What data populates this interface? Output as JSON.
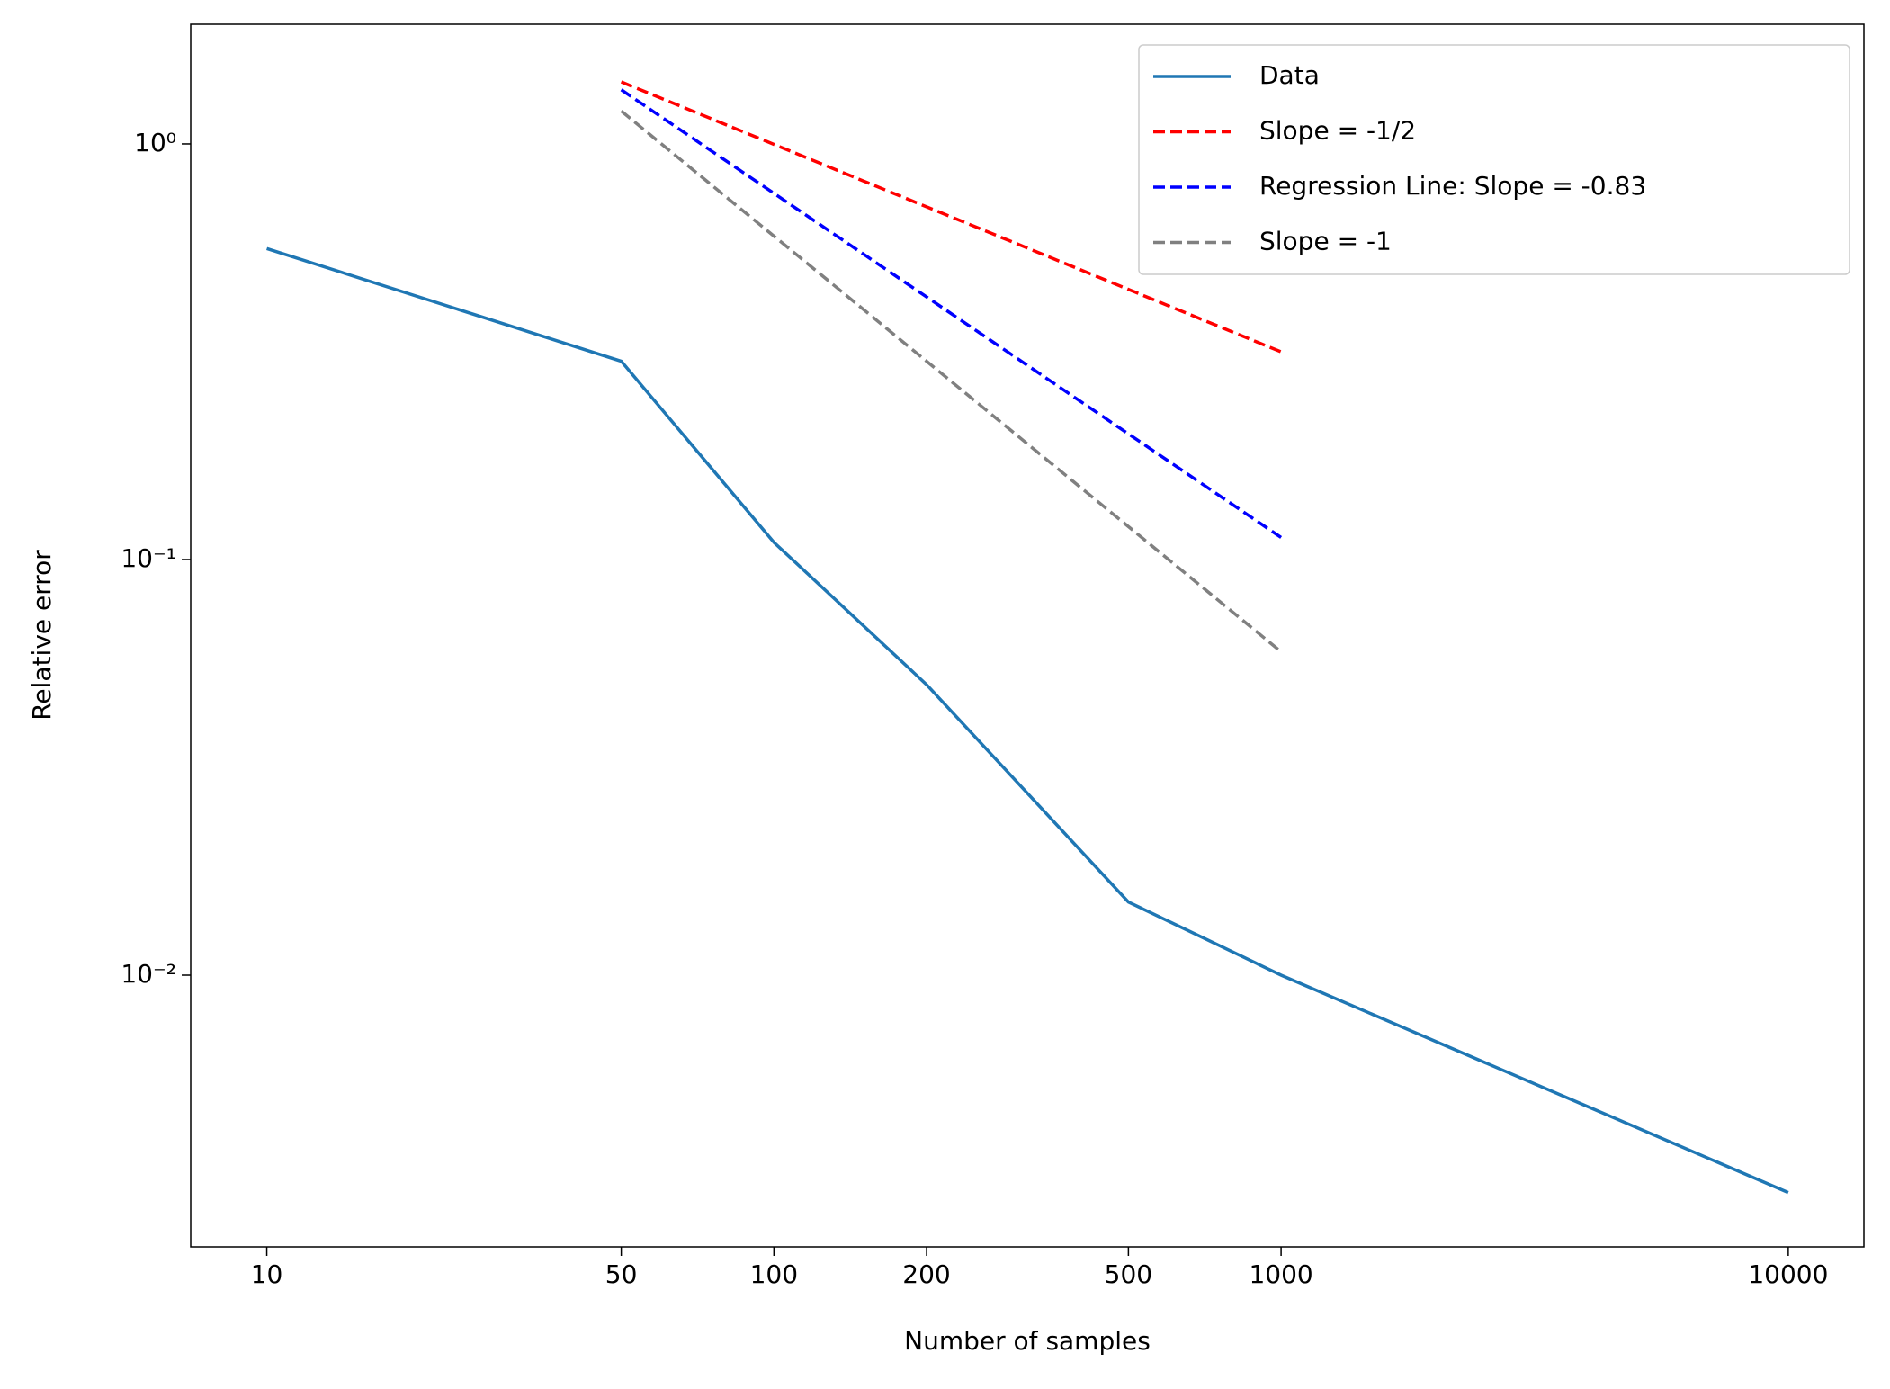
{
  "chart_data": {
    "type": "line",
    "xlabel": "Number of samples",
    "ylabel": "Relative error",
    "xscale": "log",
    "yscale": "log",
    "xlim": [
      7.08,
      14100
    ],
    "ylim": [
      0.00222,
      1.94
    ],
    "xticks": [
      10,
      50,
      100,
      200,
      500,
      1000,
      10000
    ],
    "yticks": [
      {
        "value": 1,
        "label": "10⁰"
      },
      {
        "value": 0.1,
        "label": "10⁻¹"
      },
      {
        "value": 0.01,
        "label": "10⁻²"
      }
    ],
    "legend": "upper right",
    "series": [
      {
        "name": "Data",
        "color": "#1f77b4",
        "style": "solid",
        "x": [
          10,
          50,
          100,
          200,
          500,
          1000,
          10000
        ],
        "values": [
          0.56,
          0.3,
          0.11,
          0.05,
          0.015,
          0.01,
          0.003
        ]
      },
      {
        "name": "Slope = -1/2",
        "color": "#ff0000",
        "style": "dashed",
        "x": [
          50,
          1000
        ],
        "values": [
          1.41,
          0.316
        ]
      },
      {
        "name": "Regression Line: Slope = -0.83",
        "color": "#0000ff",
        "style": "dashed",
        "x": [
          50,
          1000
        ],
        "values": [
          1.35,
          0.113
        ]
      },
      {
        "name": "Slope = -1",
        "color": "#808080",
        "style": "dashed",
        "x": [
          50,
          1000
        ],
        "values": [
          1.2,
          0.06
        ]
      }
    ]
  }
}
